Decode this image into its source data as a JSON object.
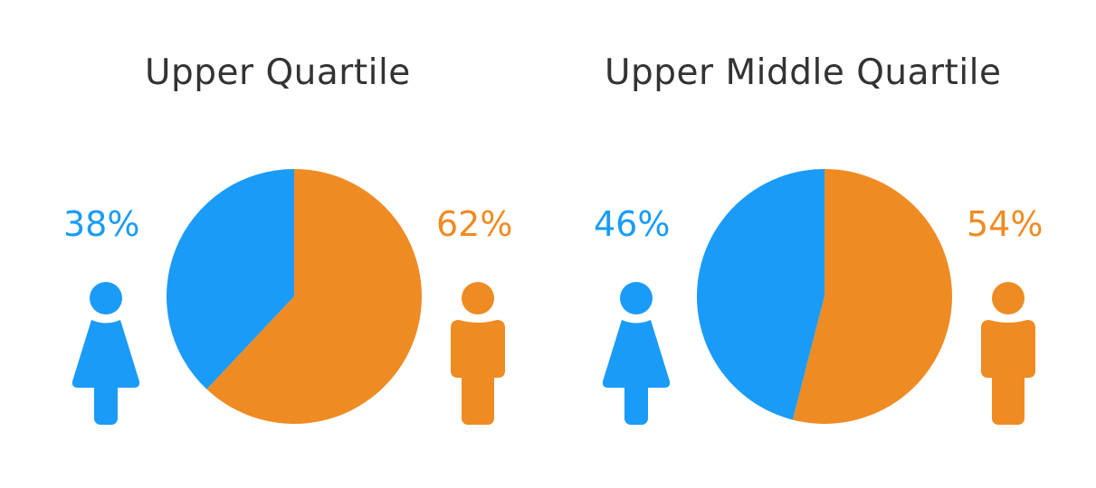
{
  "colors": {
    "female": "#1a9bf7",
    "male": "#ef8b23",
    "title": "#333333"
  },
  "icons": {
    "female": "female-person-icon",
    "male": "male-person-icon"
  },
  "chart_data": [
    {
      "type": "pie",
      "title": "Upper Quartile",
      "categories": [
        "Female",
        "Male"
      ],
      "values": [
        38,
        62
      ],
      "labels": [
        "38%",
        "62%"
      ],
      "colors": [
        "#1a9bf7",
        "#ef8b23"
      ],
      "start": "12 o'clock",
      "direction": "counter-clockwise"
    },
    {
      "type": "pie",
      "title": "Upper Middle Quartile",
      "categories": [
        "Female",
        "Male"
      ],
      "values": [
        46,
        54
      ],
      "labels": [
        "46%",
        "54%"
      ],
      "colors": [
        "#1a9bf7",
        "#ef8b23"
      ],
      "start": "12 o'clock",
      "direction": "counter-clockwise"
    }
  ]
}
